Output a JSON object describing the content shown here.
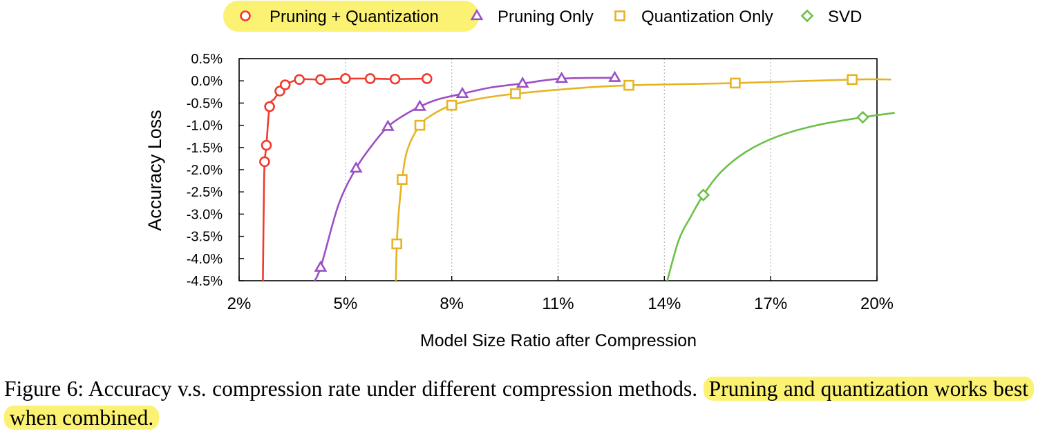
{
  "chart_data": {
    "type": "line",
    "xlabel": "Model Size Ratio after Compression",
    "ylabel": "Accuracy Loss",
    "xlim": [
      2,
      20
    ],
    "ylim": [
      -4.5,
      0.5
    ],
    "x_ticks": [
      "2%",
      "5%",
      "8%",
      "11%",
      "14%",
      "17%",
      "20%"
    ],
    "x_tick_values": [
      2,
      5,
      8,
      11,
      14,
      17,
      20
    ],
    "y_ticks": [
      "0.5%",
      "0.0%",
      "-0.5%",
      "-1.0%",
      "-1.5%",
      "-2.0%",
      "-2.5%",
      "-3.0%",
      "-3.5%",
      "-4.0%",
      "-4.5%"
    ],
    "y_tick_values": [
      0.5,
      0,
      -0.5,
      -1,
      -1.5,
      -2,
      -2.5,
      -3,
      -3.5,
      -4,
      -4.5
    ],
    "grid": "vertical",
    "legend_position": "top",
    "highlighted_legend_entry": "Pruning + Quantization",
    "series": [
      {
        "name": "Pruning + Quantization",
        "color": "#f03a2e",
        "marker": "circle",
        "points": [
          [
            2.72,
            -1.82
          ],
          [
            2.77,
            -1.45
          ],
          [
            2.86,
            -0.58
          ],
          [
            3.15,
            -0.23
          ],
          [
            3.3,
            -0.09
          ],
          [
            3.7,
            0.03
          ],
          [
            4.3,
            0.03
          ],
          [
            5.0,
            0.05
          ],
          [
            5.7,
            0.05
          ],
          [
            6.4,
            0.04
          ],
          [
            7.3,
            0.05
          ]
        ],
        "curve": [
          [
            2.67,
            -4.6
          ],
          [
            2.7,
            -2.5
          ],
          [
            2.72,
            -1.82
          ],
          [
            2.77,
            -1.45
          ],
          [
            2.86,
            -0.58
          ],
          [
            3.0,
            -0.4
          ],
          [
            3.15,
            -0.23
          ],
          [
            3.3,
            -0.09
          ],
          [
            3.7,
            0.03
          ],
          [
            4.3,
            0.03
          ],
          [
            5.0,
            0.05
          ],
          [
            5.7,
            0.05
          ],
          [
            6.4,
            0.04
          ],
          [
            7.3,
            0.05
          ]
        ]
      },
      {
        "name": "Pruning Only",
        "color": "#9b4fc4",
        "marker": "triangle",
        "points": [
          [
            4.3,
            -4.2
          ],
          [
            5.3,
            -1.97
          ],
          [
            6.2,
            -1.03
          ],
          [
            7.1,
            -0.58
          ],
          [
            8.3,
            -0.29
          ],
          [
            10.0,
            -0.06
          ],
          [
            11.1,
            0.05
          ],
          [
            12.6,
            0.07
          ]
        ],
        "curve": [
          [
            4.05,
            -4.6
          ],
          [
            4.3,
            -4.2
          ],
          [
            4.8,
            -2.8
          ],
          [
            5.3,
            -1.97
          ],
          [
            5.8,
            -1.4
          ],
          [
            6.2,
            -1.03
          ],
          [
            6.6,
            -0.8
          ],
          [
            7.1,
            -0.58
          ],
          [
            7.6,
            -0.42
          ],
          [
            8.3,
            -0.29
          ],
          [
            9.1,
            -0.15
          ],
          [
            10.0,
            -0.06
          ],
          [
            11.1,
            0.05
          ],
          [
            12.6,
            0.07
          ]
        ]
      },
      {
        "name": "Quantization Only",
        "color": "#e6b422",
        "marker": "square",
        "points": [
          [
            6.45,
            -3.67
          ],
          [
            6.6,
            -2.22
          ],
          [
            7.1,
            -1.0
          ],
          [
            8.0,
            -0.55
          ],
          [
            9.8,
            -0.29
          ],
          [
            13.0,
            -0.1
          ],
          [
            16.0,
            -0.05
          ],
          [
            19.3,
            0.03
          ]
        ],
        "curve": [
          [
            6.42,
            -4.6
          ],
          [
            6.45,
            -3.67
          ],
          [
            6.5,
            -3.0
          ],
          [
            6.6,
            -2.22
          ],
          [
            6.75,
            -1.55
          ],
          [
            7.1,
            -1.0
          ],
          [
            7.5,
            -0.74
          ],
          [
            8.0,
            -0.55
          ],
          [
            8.8,
            -0.4
          ],
          [
            9.8,
            -0.29
          ],
          [
            11.3,
            -0.18
          ],
          [
            13.0,
            -0.1
          ],
          [
            16.0,
            -0.05
          ],
          [
            19.3,
            0.03
          ],
          [
            20.4,
            0.03
          ]
        ]
      },
      {
        "name": "SVD",
        "color": "#6cc04a",
        "marker": "diamond",
        "points": [
          [
            15.1,
            -2.57
          ],
          [
            19.6,
            -0.82
          ]
        ],
        "curve": [
          [
            14.05,
            -4.6
          ],
          [
            14.4,
            -3.6
          ],
          [
            14.75,
            -3.05
          ],
          [
            15.1,
            -2.57
          ],
          [
            15.6,
            -2.05
          ],
          [
            16.3,
            -1.6
          ],
          [
            17.2,
            -1.25
          ],
          [
            18.3,
            -1.0
          ],
          [
            19.6,
            -0.82
          ],
          [
            20.5,
            -0.72
          ]
        ]
      }
    ]
  },
  "caption": {
    "prefix": "Figure 6:  Accuracy v.s.  compression rate under different compression methods. ",
    "highlight": "Pruning and quantization works best when combined."
  }
}
